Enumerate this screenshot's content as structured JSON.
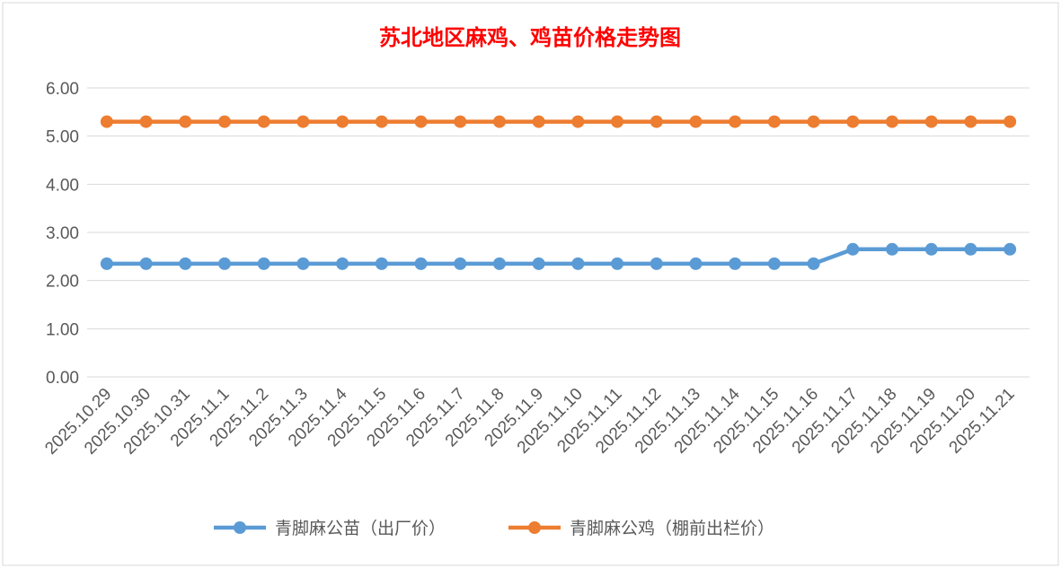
{
  "chart_data": {
    "type": "line",
    "title": "苏北地区麻鸡、鸡苗价格走势图",
    "title_color": "#FF0000",
    "categories": [
      "2025.10.29",
      "2025.10.30",
      "2025.10.31",
      "2025.11.1",
      "2025.11.2",
      "2025.11.3",
      "2025.11.4",
      "2025.11.5",
      "2025.11.6",
      "2025.11.7",
      "2025.11.8",
      "2025.11.9",
      "2025.11.10",
      "2025.11.11",
      "2025.11.12",
      "2025.11.13",
      "2025.11.14",
      "2025.11.15",
      "2025.11.16",
      "2025.11.17",
      "2025.11.18",
      "2025.11.19",
      "2025.11.20",
      "2025.11.21"
    ],
    "series": [
      {
        "name": "青脚麻公苗（出厂价）",
        "color": "#5B9BD5",
        "values": [
          2.35,
          2.35,
          2.35,
          2.35,
          2.35,
          2.35,
          2.35,
          2.35,
          2.35,
          2.35,
          2.35,
          2.35,
          2.35,
          2.35,
          2.35,
          2.35,
          2.35,
          2.35,
          2.35,
          2.65,
          2.65,
          2.65,
          2.65,
          2.65
        ]
      },
      {
        "name": "青脚麻公鸡（棚前出栏价）",
        "color": "#ED7D31",
        "values": [
          5.3,
          5.3,
          5.3,
          5.3,
          5.3,
          5.3,
          5.3,
          5.3,
          5.3,
          5.3,
          5.3,
          5.3,
          5.3,
          5.3,
          5.3,
          5.3,
          5.3,
          5.3,
          5.3,
          5.3,
          5.3,
          5.3,
          5.3,
          5.3
        ]
      }
    ],
    "ylim": [
      0,
      6
    ],
    "yticks": [
      "0.00",
      "1.00",
      "2.00",
      "3.00",
      "4.00",
      "5.00",
      "6.00"
    ],
    "xlabel": "",
    "ylabel": "",
    "grid": true,
    "legend_position": "bottom"
  }
}
